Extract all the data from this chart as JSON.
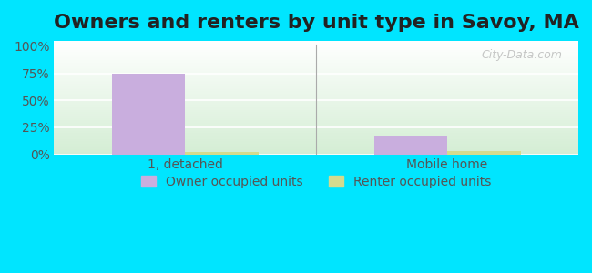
{
  "title": "Owners and renters by unit type in Savoy, MA",
  "categories": [
    "1, detached",
    "Mobile home"
  ],
  "owner_values": [
    75,
    17
  ],
  "renter_values": [
    2,
    3
  ],
  "owner_color": "#c9aede",
  "renter_color": "#d4db8e",
  "owner_label": "Owner occupied units",
  "renter_label": "Renter occupied units",
  "yticks": [
    0,
    25,
    50,
    75,
    100
  ],
  "ylim": [
    0,
    105
  ],
  "bar_width": 0.28,
  "outer_bg": "#00e5ff",
  "watermark": "City-Data.com",
  "title_fontsize": 16,
  "tick_fontsize": 10,
  "legend_fontsize": 10,
  "group_positions": [
    0,
    1
  ],
  "xlim": [
    -0.5,
    1.5
  ]
}
